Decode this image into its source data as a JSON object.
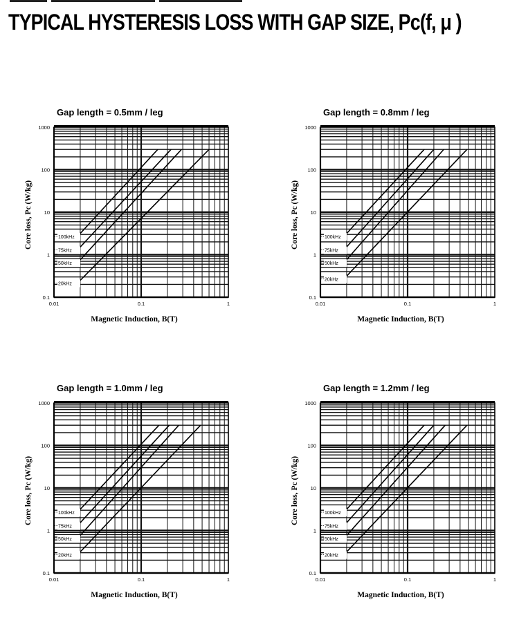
{
  "page": {
    "title": "TYPICAL HYSTERESIS LOSS WITH GAP SIZE, Pc(f, μ )"
  },
  "chart_data": [
    {
      "type": "line",
      "title": "Gap length = 0.5mm / leg",
      "xlabel": "Magnetic Induction, B(T)",
      "ylabel": "Core loss, Pc (W/kg)",
      "xscale": "log",
      "yscale": "log",
      "xlim": [
        0.01,
        1
      ],
      "ylim": [
        0.1,
        1000
      ],
      "xticks": [
        "0.01",
        "0.1",
        "1"
      ],
      "yticks": [
        "0.1",
        "1",
        "10",
        "100",
        "1000"
      ],
      "series": [
        {
          "name": "100kHz",
          "x": [
            0.018,
            0.155
          ],
          "y": [
            2.5,
            300
          ]
        },
        {
          "name": "75kHz",
          "x": [
            0.018,
            0.22
          ],
          "y": [
            1.2,
            300
          ]
        },
        {
          "name": "50kHz",
          "x": [
            0.018,
            0.29
          ],
          "y": [
            0.6,
            300
          ]
        },
        {
          "name": "20kHz",
          "x": [
            0.018,
            0.6
          ],
          "y": [
            0.2,
            300
          ]
        }
      ]
    },
    {
      "type": "line",
      "title": "Gap length = 0.8mm / leg",
      "xlabel": "Magnetic Induction, B(T)",
      "ylabel": "Core loss, Pc (W/kg)",
      "xscale": "log",
      "yscale": "log",
      "xlim": [
        0.01,
        1
      ],
      "ylim": [
        0.1,
        1000
      ],
      "xticks": [
        "0.01",
        "0.1",
        "1"
      ],
      "yticks": [
        "0.1",
        "1",
        "10",
        "100",
        "1000"
      ],
      "series": [
        {
          "name": "100kHz",
          "x": [
            0.018,
            0.155
          ],
          "y": [
            2.5,
            300
          ]
        },
        {
          "name": "75kHz",
          "x": [
            0.018,
            0.2
          ],
          "y": [
            1.2,
            300
          ]
        },
        {
          "name": "50kHz",
          "x": [
            0.018,
            0.26
          ],
          "y": [
            0.6,
            300
          ]
        },
        {
          "name": "20kHz",
          "x": [
            0.018,
            0.48
          ],
          "y": [
            0.25,
            300
          ]
        }
      ]
    },
    {
      "type": "line",
      "title": "Gap length = 1.0mm / leg",
      "xlabel": "Magnetic Induction, B(T)",
      "ylabel": "Core loss, Pc (W/kg)",
      "xscale": "log",
      "yscale": "log",
      "xlim": [
        0.01,
        1
      ],
      "ylim": [
        0.1,
        1000
      ],
      "xticks": [
        "0.01",
        "0.1",
        "1"
      ],
      "yticks": [
        "0.1",
        "1",
        "10",
        "100",
        "1000"
      ],
      "series": [
        {
          "name": "100kHz",
          "x": [
            0.018,
            0.16
          ],
          "y": [
            2.5,
            300
          ]
        },
        {
          "name": "75kHz",
          "x": [
            0.018,
            0.21
          ],
          "y": [
            1.2,
            300
          ]
        },
        {
          "name": "50kHz",
          "x": [
            0.018,
            0.27
          ],
          "y": [
            0.6,
            300
          ]
        },
        {
          "name": "20kHz",
          "x": [
            0.018,
            0.48
          ],
          "y": [
            0.25,
            300
          ]
        }
      ]
    },
    {
      "type": "line",
      "title": "Gap length = 1.2mm / leg",
      "xlabel": "Magnetic Induction, B(T)",
      "ylabel": "Core loss, Pc (W/kg)",
      "xscale": "log",
      "yscale": "log",
      "xlim": [
        0.01,
        1
      ],
      "ylim": [
        0.1,
        1000
      ],
      "xticks": [
        "0.01",
        "0.1",
        "1"
      ],
      "yticks": [
        "0.1",
        "1",
        "10",
        "100",
        "1000"
      ],
      "series": [
        {
          "name": "100kHz",
          "x": [
            0.018,
            0.155
          ],
          "y": [
            2.5,
            300
          ]
        },
        {
          "name": "75kHz",
          "x": [
            0.018,
            0.2
          ],
          "y": [
            1.2,
            300
          ]
        },
        {
          "name": "50kHz",
          "x": [
            0.018,
            0.27
          ],
          "y": [
            0.6,
            300
          ]
        },
        {
          "name": "20kHz",
          "x": [
            0.018,
            0.48
          ],
          "y": [
            0.25,
            300
          ]
        }
      ]
    }
  ]
}
